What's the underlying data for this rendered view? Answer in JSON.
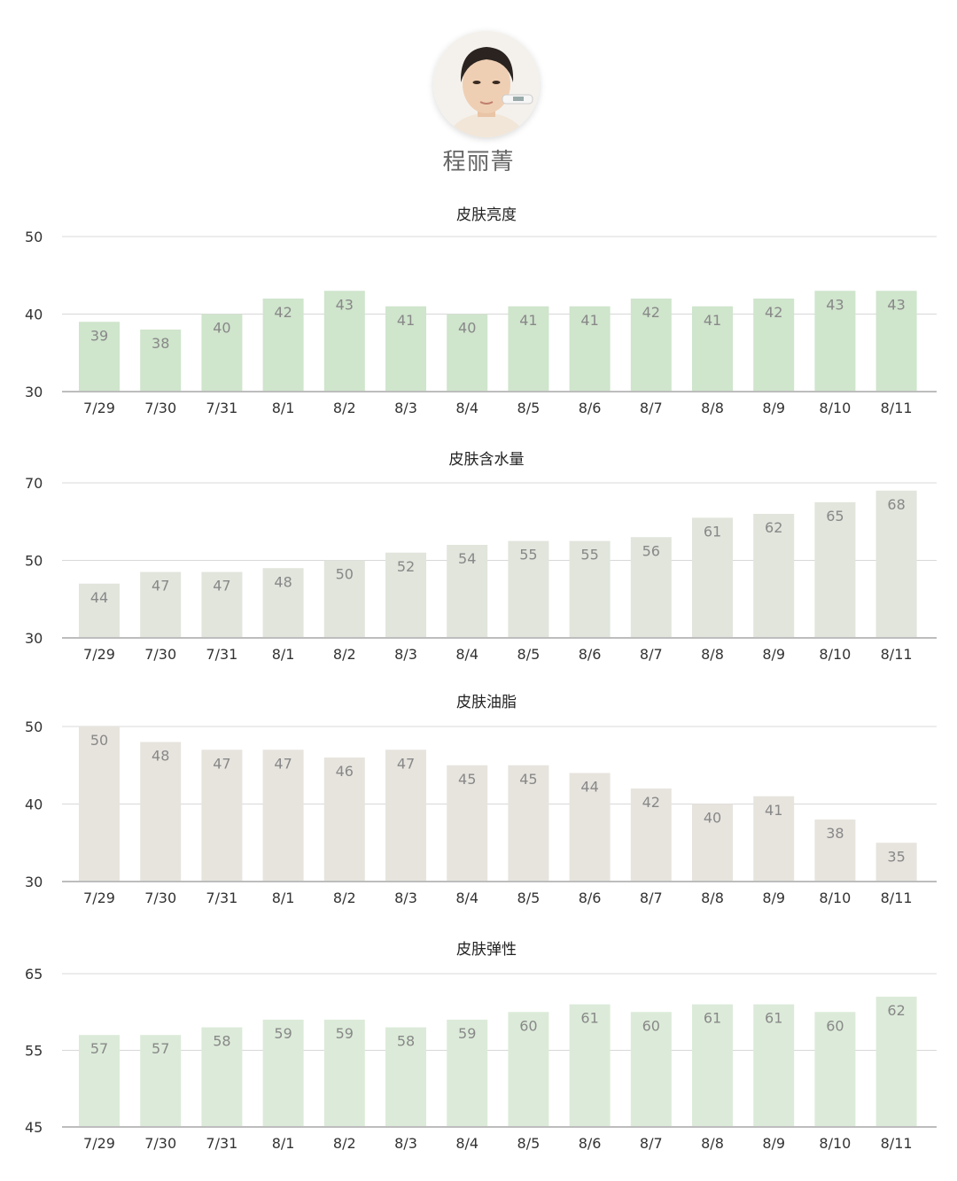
{
  "profile": {
    "name": "程丽菁"
  },
  "chart_data": [
    {
      "type": "bar",
      "title": "皮肤亮度",
      "categories": [
        "7/29",
        "7/30",
        "7/31",
        "8/1",
        "8/2",
        "8/3",
        "8/4",
        "8/5",
        "8/6",
        "8/7",
        "8/8",
        "8/9",
        "8/10",
        "8/11"
      ],
      "values": [
        39,
        38,
        40,
        42,
        43,
        41,
        40,
        41,
        41,
        42,
        41,
        42,
        43,
        43
      ],
      "ylim": [
        30,
        50
      ],
      "yticks": [
        30,
        40,
        50
      ],
      "color": "#cfe5cc",
      "grid": true
    },
    {
      "type": "bar",
      "title": "皮肤含水量",
      "categories": [
        "7/29",
        "7/30",
        "7/31",
        "8/1",
        "8/2",
        "8/3",
        "8/4",
        "8/5",
        "8/6",
        "8/7",
        "8/8",
        "8/9",
        "8/10",
        "8/11"
      ],
      "values": [
        44,
        47,
        47,
        48,
        50,
        52,
        54,
        55,
        55,
        56,
        61,
        62,
        65,
        68
      ],
      "ylim": [
        30,
        70
      ],
      "yticks": [
        30,
        50,
        70
      ],
      "color": "#e1e5dc",
      "grid": true
    },
    {
      "type": "bar",
      "title": "皮肤油脂",
      "categories": [
        "7/29",
        "7/30",
        "7/31",
        "8/1",
        "8/2",
        "8/3",
        "8/4",
        "8/5",
        "8/6",
        "8/7",
        "8/8",
        "8/9",
        "8/10",
        "8/11"
      ],
      "values": [
        50,
        48,
        47,
        47,
        46,
        47,
        45,
        45,
        44,
        42,
        40,
        41,
        38,
        35
      ],
      "ylim": [
        30,
        50
      ],
      "yticks": [
        30,
        40,
        50
      ],
      "color": "#e7e4de",
      "grid": true
    },
    {
      "type": "bar",
      "title": "皮肤弹性",
      "categories": [
        "7/29",
        "7/30",
        "7/31",
        "8/1",
        "8/2",
        "8/3",
        "8/4",
        "8/5",
        "8/6",
        "8/7",
        "8/8",
        "8/9",
        "8/10",
        "8/11"
      ],
      "values": [
        57,
        57,
        58,
        59,
        59,
        58,
        59,
        60,
        61,
        60,
        61,
        61,
        60,
        62
      ],
      "ylim": [
        45,
        65
      ],
      "yticks": [
        45,
        55,
        65
      ],
      "color": "#dcebd9",
      "grid": true
    }
  ]
}
